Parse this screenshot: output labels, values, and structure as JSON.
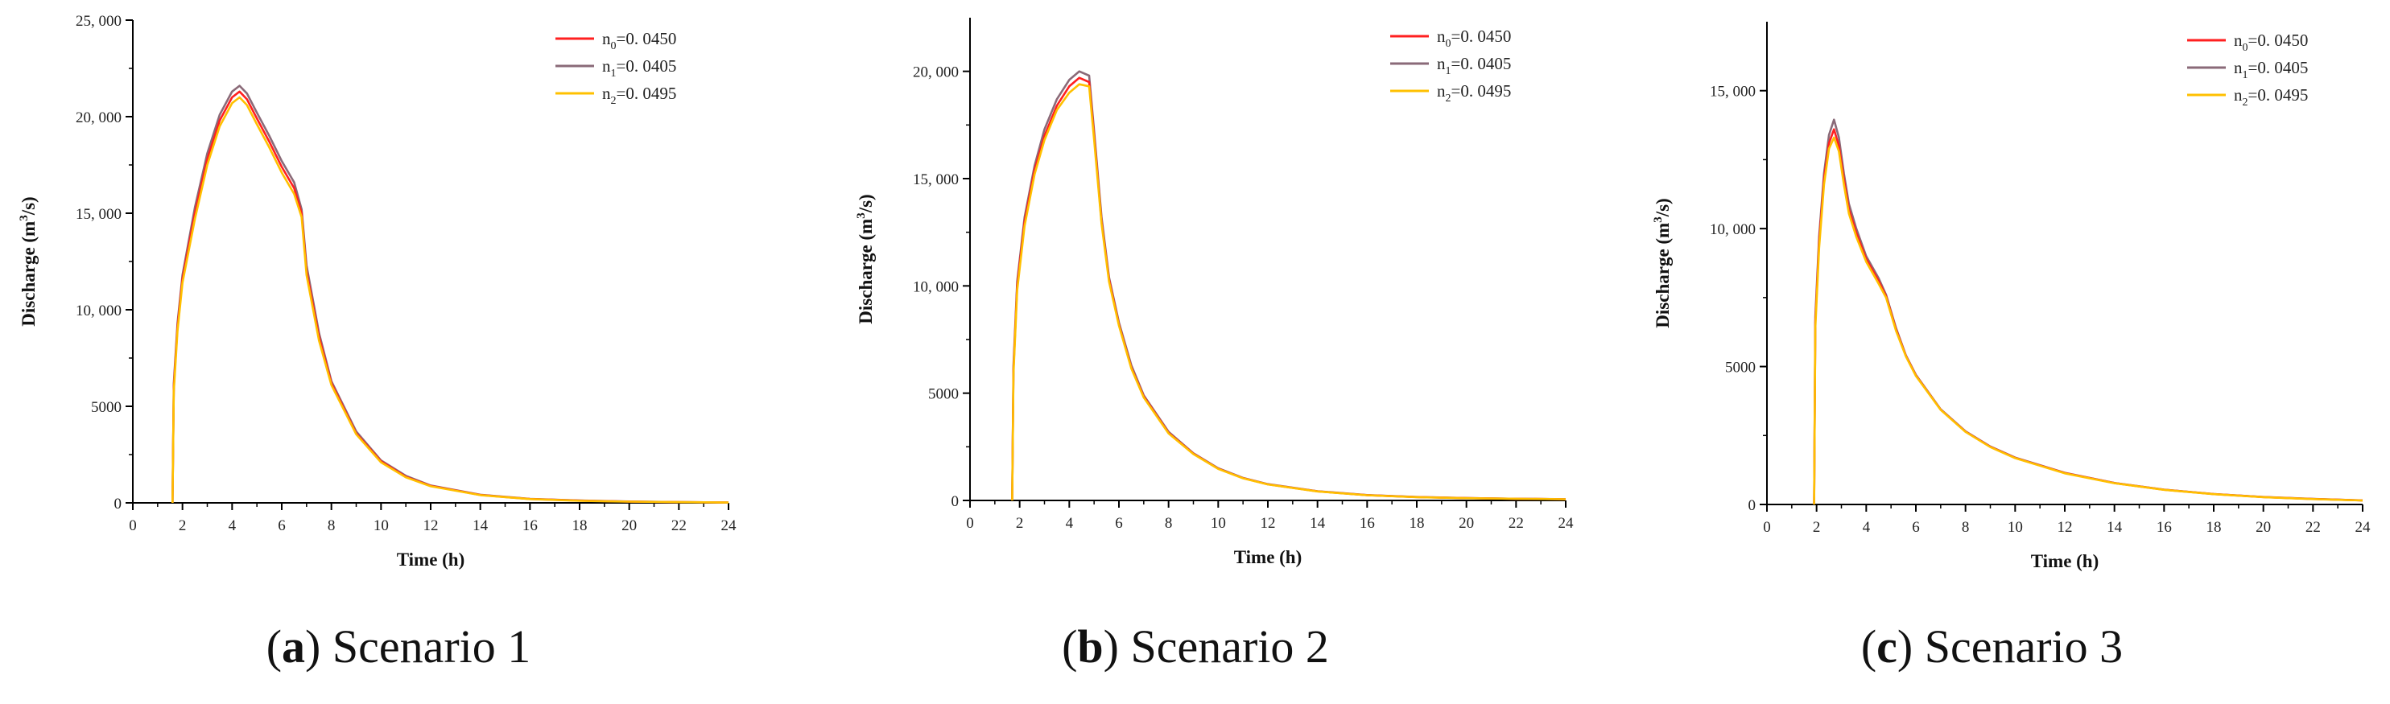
{
  "colors": {
    "n0": "#ff2020",
    "n1": "#8a6a78",
    "n2": "#ffc000"
  },
  "panels": [
    {
      "caption_letter": "a",
      "caption_text": "Scenario 1",
      "chart_data": {
        "type": "line",
        "xlabel": "Time (h)",
        "ylabel_pre": "Discharge (m",
        "ylabel_sup": "3",
        "ylabel_post": "/s)",
        "xlim": [
          0,
          24
        ],
        "ylim": [
          0,
          25000
        ],
        "xticks": [
          0,
          2,
          4,
          6,
          8,
          10,
          12,
          14,
          16,
          18,
          20,
          22,
          24
        ],
        "yticks": [
          0,
          5000,
          10000,
          15000,
          20000,
          25000
        ],
        "ytick_labels": [
          "0",
          "5000",
          "10, 000",
          "15, 000",
          "20, 000",
          "25, 000"
        ],
        "legend_position": "top-right",
        "series": [
          {
            "legend_base": "n",
            "legend_sub": "1",
            "legend_value": "=0. 0405",
            "color": "#8a6a78",
            "x": [
              1.6,
              1.65,
              1.8,
              2.0,
              2.5,
              3.0,
              3.5,
              4.0,
              4.3,
              4.6,
              5.0,
              5.5,
              6.0,
              6.5,
              6.8,
              7.0,
              7.5,
              8.0,
              9.0,
              10.0,
              11.0,
              12.0,
              14.0,
              16.0,
              18.0,
              20.0,
              22.0,
              24.0
            ],
            "y": [
              0,
              6200,
              9300,
              11800,
              15300,
              18100,
              20100,
              21300,
              21600,
              21200,
              20200,
              19000,
              17700,
              16600,
              15200,
              12300,
              8800,
              6300,
              3700,
              2200,
              1400,
              900,
              420,
              210,
              120,
              70,
              40,
              20
            ]
          },
          {
            "legend_base": "n",
            "legend_sub": "0",
            "legend_value": "=0. 0450",
            "color": "#ff2020",
            "x": [
              1.6,
              1.65,
              1.8,
              2.0,
              2.5,
              3.0,
              3.5,
              4.0,
              4.3,
              4.6,
              5.0,
              5.5,
              6.0,
              6.5,
              6.8,
              7.0,
              7.5,
              8.0,
              9.0,
              10.0,
              11.0,
              12.0,
              14.0,
              16.0,
              18.0,
              20.0,
              22.0,
              24.0
            ],
            "y": [
              0,
              6000,
              9100,
              11600,
              15000,
              17800,
              19800,
              21000,
              21300,
              20900,
              19900,
              18700,
              17400,
              16300,
              15000,
              12000,
              8600,
              6200,
              3600,
              2150,
              1350,
              880,
              410,
              200,
              115,
              65,
              38,
              18
            ]
          },
          {
            "legend_base": "n",
            "legend_sub": "2",
            "legend_value": "=0. 0495",
            "color": "#ffc000",
            "x": [
              1.6,
              1.65,
              1.8,
              2.0,
              2.5,
              3.0,
              3.5,
              4.0,
              4.3,
              4.6,
              5.0,
              5.5,
              6.0,
              6.5,
              6.8,
              7.0,
              7.5,
              8.0,
              9.0,
              10.0,
              11.0,
              12.0,
              14.0,
              16.0,
              18.0,
              20.0,
              22.0,
              24.0
            ],
            "y": [
              0,
              5800,
              8900,
              11400,
              14700,
              17500,
              19500,
              20700,
              21000,
              20600,
              19600,
              18400,
              17100,
              16000,
              14800,
              11800,
              8400,
              6100,
              3550,
              2100,
              1320,
              860,
              400,
              195,
              110,
              62,
              36,
              17
            ]
          }
        ]
      }
    },
    {
      "caption_letter": "b",
      "caption_text": "Scenario 2",
      "chart_data": {
        "type": "line",
        "xlabel": "Time (h)",
        "ylabel_pre": "Discharge (m",
        "ylabel_sup": "3",
        "ylabel_post": "/s)",
        "xlim": [
          0,
          24
        ],
        "ylim": [
          0,
          22500
        ],
        "xticks": [
          0,
          2,
          4,
          6,
          8,
          10,
          12,
          14,
          16,
          18,
          20,
          22,
          24
        ],
        "yticks": [
          0,
          5000,
          10000,
          15000,
          20000
        ],
        "ytick_labels": [
          "0",
          "5000",
          "10, 000",
          "15, 000",
          "20, 000"
        ],
        "legend_position": "top-right",
        "series": [
          {
            "legend_base": "n",
            "legend_sub": "1",
            "legend_value": "=0. 0405",
            "color": "#8a6a78",
            "x": [
              1.7,
              1.75,
              1.9,
              2.2,
              2.6,
              3.0,
              3.5,
              4.0,
              4.4,
              4.8,
              5.0,
              5.3,
              5.6,
              6.0,
              6.5,
              7.0,
              8.0,
              9.0,
              10.0,
              11.0,
              12.0,
              14.0,
              16.0,
              18.0,
              20.0,
              22.0,
              24.0
            ],
            "y": [
              0,
              6300,
              10200,
              13200,
              15600,
              17300,
              18700,
              19600,
              20000,
              19800,
              17200,
              13200,
              10400,
              8300,
              6300,
              4900,
              3200,
              2200,
              1500,
              1050,
              760,
              430,
              250,
              160,
              110,
              80,
              60
            ]
          },
          {
            "legend_base": "n",
            "legend_sub": "0",
            "legend_value": "=0. 0450",
            "color": "#ff2020",
            "x": [
              1.7,
              1.75,
              1.9,
              2.2,
              2.6,
              3.0,
              3.5,
              4.0,
              4.4,
              4.8,
              5.0,
              5.3,
              5.6,
              6.0,
              6.5,
              7.0,
              8.0,
              9.0,
              10.0,
              11.0,
              12.0,
              14.0,
              16.0,
              18.0,
              20.0,
              22.0,
              24.0
            ],
            "y": [
              0,
              6100,
              10000,
              13000,
              15400,
              17000,
              18400,
              19300,
              19700,
              19500,
              17000,
              13000,
              10300,
              8200,
              6200,
              4850,
              3150,
              2180,
              1480,
              1040,
              750,
              425,
              248,
              158,
              108,
              78,
              58
            ]
          },
          {
            "legend_base": "n",
            "legend_sub": "2",
            "legend_value": "=0. 0495",
            "color": "#ffc000",
            "x": [
              1.7,
              1.75,
              1.9,
              2.2,
              2.6,
              3.0,
              3.5,
              4.0,
              4.4,
              4.8,
              5.0,
              5.3,
              5.6,
              6.0,
              6.5,
              7.0,
              8.0,
              9.0,
              10.0,
              11.0,
              12.0,
              14.0,
              16.0,
              18.0,
              20.0,
              22.0,
              24.0
            ],
            "y": [
              0,
              5900,
              9800,
              12800,
              15200,
              16800,
              18200,
              19000,
              19400,
              19300,
              16800,
              12900,
              10200,
              8150,
              6150,
              4800,
              3120,
              2160,
              1470,
              1030,
              745,
              420,
              245,
              155,
              106,
              77,
              57
            ]
          }
        ]
      }
    },
    {
      "caption_letter": "c",
      "caption_text": "Scenario 3",
      "chart_data": {
        "type": "line",
        "xlabel": "Time (h)",
        "ylabel_pre": "Discharge (m",
        "ylabel_sup": "3",
        "ylabel_post": "/s)",
        "xlim": [
          0,
          24
        ],
        "ylim": [
          0,
          17500
        ],
        "xticks": [
          0,
          2,
          4,
          6,
          8,
          10,
          12,
          14,
          16,
          18,
          20,
          22,
          24
        ],
        "yticks": [
          0,
          5000,
          10000,
          15000
        ],
        "ytick_labels": [
          "0",
          "5000",
          "10, 000",
          "15, 000"
        ],
        "legend_position": "top-right",
        "series": [
          {
            "legend_base": "n",
            "legend_sub": "1",
            "legend_value": "=0. 0405",
            "color": "#8a6a78",
            "x": [
              1.9,
              1.95,
              2.1,
              2.3,
              2.5,
              2.7,
              2.9,
              3.1,
              3.3,
              3.6,
              4.0,
              4.5,
              4.8,
              5.2,
              5.6,
              6.0,
              7.0,
              8.0,
              9.0,
              10.0,
              12.0,
              14.0,
              16.0,
              18.0,
              20.0,
              22.0,
              24.0
            ],
            "y": [
              0,
              6800,
              9700,
              12000,
              13400,
              13950,
              13300,
              12000,
              10900,
              10000,
              9000,
              8200,
              7600,
              6400,
              5400,
              4700,
              3450,
              2650,
              2100,
              1700,
              1150,
              780,
              540,
              380,
              270,
              200,
              150
            ]
          },
          {
            "legend_base": "n",
            "legend_sub": "0",
            "legend_value": "=0. 0450",
            "color": "#ff2020",
            "x": [
              1.9,
              1.95,
              2.1,
              2.3,
              2.5,
              2.7,
              2.9,
              3.1,
              3.3,
              3.6,
              4.0,
              4.5,
              4.8,
              5.2,
              5.6,
              6.0,
              7.0,
              8.0,
              9.0,
              10.0,
              12.0,
              14.0,
              16.0,
              18.0,
              20.0,
              22.0,
              24.0
            ],
            "y": [
              0,
              6600,
              9500,
              11800,
              13100,
              13600,
              13000,
              11800,
              10700,
              9850,
              8900,
              8100,
              7550,
              6350,
              5380,
              4680,
              3440,
              2640,
              2090,
              1690,
              1140,
              775,
              535,
              375,
              268,
              198,
              148
            ]
          },
          {
            "legend_base": "n",
            "legend_sub": "2",
            "legend_value": "=0. 0495",
            "color": "#ffc000",
            "x": [
              1.9,
              1.95,
              2.1,
              2.3,
              2.5,
              2.7,
              2.9,
              3.1,
              3.3,
              3.6,
              4.0,
              4.5,
              4.8,
              5.2,
              5.6,
              6.0,
              7.0,
              8.0,
              9.0,
              10.0,
              12.0,
              14.0,
              16.0,
              18.0,
              20.0,
              22.0,
              24.0
            ],
            "y": [
              0,
              6400,
              9300,
              11600,
              12900,
              13300,
              12800,
              11600,
              10550,
              9700,
              8800,
              8000,
              7500,
              6300,
              5360,
              4660,
              3430,
              2630,
              2080,
              1680,
              1130,
              770,
              532,
              372,
              266,
              196,
              146
            ]
          }
        ]
      }
    }
  ]
}
